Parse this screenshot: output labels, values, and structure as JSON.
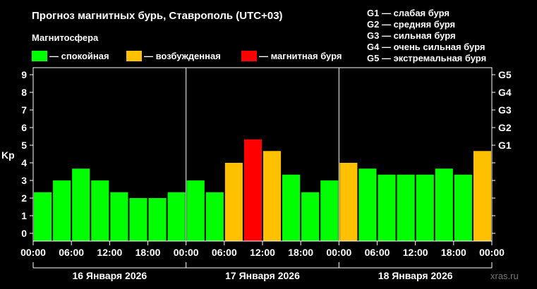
{
  "header": {
    "title": "Прогноз магнитных бурь, Ставрополь (UTC+03)",
    "magnetosphere_label": "Магнитосфера",
    "legend": [
      {
        "label": "— спокойная",
        "color": "#00ff00"
      },
      {
        "label": "— возбужденная",
        "color": "#ffc000"
      },
      {
        "label": "— магнитная буря",
        "color": "#ff0000"
      }
    ],
    "storm_scale": [
      "G1 — слабая буря",
      "G2 — средняя буря",
      "G3 — сильная буря",
      "G4 — очень сильная буря",
      "G5 — экстремальная буря"
    ]
  },
  "watermark": "xras.ru",
  "chart_data": {
    "type": "bar",
    "ylabel": "Kp",
    "ylim": [
      0,
      9
    ],
    "yticks": [
      "0",
      "1",
      "2",
      "3",
      "4",
      "5",
      "6",
      "7",
      "8",
      "9"
    ],
    "g_ticks": [
      {
        "label": "G1",
        "value": 5
      },
      {
        "label": "G2",
        "value": 6
      },
      {
        "label": "G3",
        "value": 7
      },
      {
        "label": "G4",
        "value": 8
      },
      {
        "label": "G5",
        "value": 9
      }
    ],
    "x_ticks": [
      "00:00",
      "06:00",
      "12:00",
      "18:00",
      "00:00",
      "06:00",
      "12:00",
      "18:00",
      "00:00",
      "06:00",
      "12:00",
      "18:00",
      "00:00"
    ],
    "days": [
      "16 Января 2026",
      "17 Января 2026",
      "18 Января 2026"
    ],
    "values": [
      2.33,
      3.0,
      3.67,
      3.0,
      2.33,
      2.0,
      2.0,
      2.33,
      3.0,
      2.33,
      4.0,
      5.33,
      4.67,
      3.33,
      2.33,
      3.0,
      4.0,
      3.67,
      3.33,
      3.33,
      3.33,
      3.67,
      3.33,
      4.67
    ],
    "levels": [
      "quiet",
      "quiet",
      "quiet",
      "quiet",
      "quiet",
      "quiet",
      "quiet",
      "quiet",
      "quiet",
      "quiet",
      "unsettled",
      "storm",
      "unsettled",
      "quiet",
      "quiet",
      "quiet",
      "unsettled",
      "quiet",
      "quiet",
      "quiet",
      "quiet",
      "quiet",
      "quiet",
      "unsettled"
    ],
    "colors": {
      "quiet": "#00ff00",
      "unsettled": "#ffc000",
      "storm": "#ff0000"
    },
    "grid": false
  }
}
